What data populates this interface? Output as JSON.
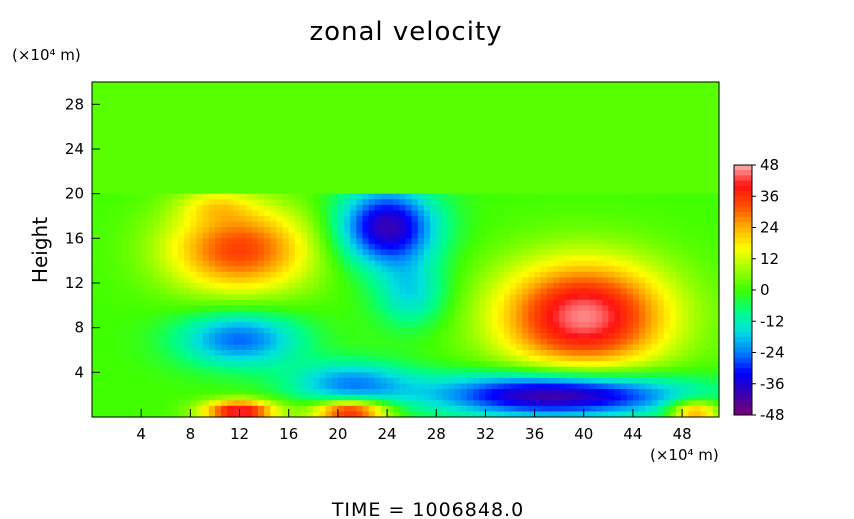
{
  "chart_data": {
    "type": "heatmap",
    "title": "zonal velocity",
    "ylabel": "Height",
    "xlabel": "",
    "x_unit_label": "(×10⁴ m)",
    "y_unit_label": "(×10⁴ m)",
    "xlim": [
      0,
      51
    ],
    "ylim": [
      0,
      30
    ],
    "x_ticks": [
      4,
      8,
      12,
      16,
      20,
      24,
      28,
      32,
      36,
      40,
      44,
      48
    ],
    "y_ticks": [
      4,
      8,
      12,
      16,
      20,
      24,
      28
    ],
    "colorbar": {
      "min": -48,
      "max": 48,
      "ticks": [
        48,
        36,
        24,
        12,
        0,
        -12,
        -24,
        -36,
        -48
      ]
    },
    "field": {
      "background_above_z": 20,
      "background_value_upper": 2,
      "features": [
        {
          "x": 12,
          "y": 15,
          "amp": 34,
          "rx": 6,
          "ry": 4
        },
        {
          "x": 10,
          "y": 19,
          "amp": 10,
          "rx": 3,
          "ry": 1.4
        },
        {
          "x": 24,
          "y": 17,
          "amp": -40,
          "rx": 4,
          "ry": 3.5
        },
        {
          "x": 26,
          "y": 11,
          "amp": -16,
          "rx": 3,
          "ry": 3
        },
        {
          "x": 12,
          "y": 7,
          "amp": -26,
          "rx": 5,
          "ry": 2.5
        },
        {
          "x": 21,
          "y": 3,
          "amp": -22,
          "rx": 5,
          "ry": 2
        },
        {
          "x": 40,
          "y": 9,
          "amp": 46,
          "rx": 7,
          "ry": 5
        },
        {
          "x": 38,
          "y": 2,
          "amp": -46,
          "rx": 10,
          "ry": 2
        },
        {
          "x": 12,
          "y": 0.5,
          "amp": 44,
          "rx": 3,
          "ry": 1
        },
        {
          "x": 21,
          "y": 0.5,
          "amp": 42,
          "rx": 3,
          "ry": 1
        },
        {
          "x": 49,
          "y": 0.5,
          "amp": 30,
          "rx": 2,
          "ry": 1
        }
      ]
    }
  },
  "footer": {
    "time_text": "TIME  =  1006848.0"
  }
}
